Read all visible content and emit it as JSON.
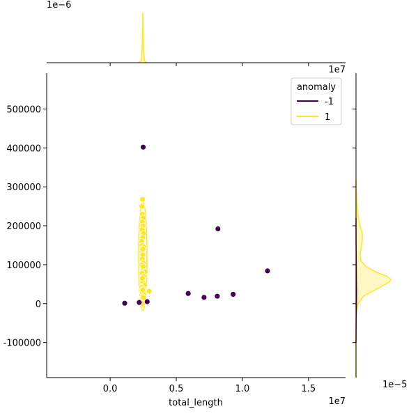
{
  "chart_data": {
    "type": "scatter",
    "title": "",
    "xlabel": "total_length",
    "ylabel": "",
    "xlim": [
      -4800000,
      17800000
    ],
    "ylim": [
      -190000,
      592000
    ],
    "x_ticks": [
      0,
      5000000,
      10000000,
      15000000
    ],
    "x_tick_labels": [
      "0.0",
      "0.5",
      "1.0",
      "1.5"
    ],
    "y_ticks": [
      -100000,
      0,
      100000,
      200000,
      300000,
      400000,
      500000
    ],
    "y_tick_labels": [
      "-100000",
      "0",
      "100000",
      "200000",
      "300000",
      "400000",
      "500000"
    ],
    "x_offset_label": "1e7",
    "top_marginal_offset_label": "1e−6",
    "right_top_offset_label": "1e7",
    "right_bottom_offset_label": "1e−5",
    "legend": {
      "title": "anomaly",
      "entries": [
        {
          "label": "-1",
          "color": "#440154"
        },
        {
          "label": "1",
          "color": "#fde725"
        }
      ]
    },
    "colors": {
      "anomaly_neg": "#440154",
      "anomaly_pos": "#fde725",
      "kde_fill": "#fef7c3"
    },
    "series": [
      {
        "name": "-1",
        "points": [
          [
            1100000,
            1000
          ],
          [
            2200000,
            3000
          ],
          [
            2500000,
            402000
          ],
          [
            2800000,
            5000
          ],
          [
            5900000,
            26000
          ],
          [
            7100000,
            16000
          ],
          [
            8100000,
            19000
          ],
          [
            8150000,
            192000
          ],
          [
            9300000,
            24000
          ],
          [
            11900000,
            84000
          ]
        ]
      },
      {
        "name": "1",
        "points": [
          [
            2450000,
            268000
          ],
          [
            2400000,
            250000
          ],
          [
            2420000,
            230000
          ],
          [
            2500000,
            220000
          ],
          [
            2430000,
            210000
          ],
          [
            2480000,
            200000
          ],
          [
            2410000,
            190000
          ],
          [
            2520000,
            180000
          ],
          [
            2460000,
            170000
          ],
          [
            2400000,
            160000
          ],
          [
            2440000,
            150000
          ],
          [
            2550000,
            145000
          ],
          [
            2420000,
            135000
          ],
          [
            2470000,
            125000
          ],
          [
            2430000,
            115000
          ],
          [
            2500000,
            105000
          ],
          [
            2410000,
            100000
          ],
          [
            2480000,
            90000
          ],
          [
            2650000,
            82000
          ],
          [
            2420000,
            78000
          ],
          [
            2530000,
            70000
          ],
          [
            2450000,
            62000
          ],
          [
            2480000,
            55000
          ],
          [
            2600000,
            48000
          ],
          [
            2400000,
            42000
          ],
          [
            2520000,
            38000
          ],
          [
            2950000,
            32000
          ],
          [
            2430000,
            28000
          ],
          [
            2560000,
            22000
          ],
          [
            2460000,
            18000
          ],
          [
            2490000,
            12000
          ],
          [
            2420000,
            8000
          ],
          [
            2580000,
            4000
          ],
          [
            2450000,
            0
          ],
          [
            2510000,
            15000
          ],
          [
            2470000,
            35000
          ],
          [
            2440000,
            65000
          ],
          [
            2500000,
            95000
          ],
          [
            2470000,
            140000
          ]
        ]
      }
    ],
    "kde_right_yellow": [
      [
        -190000,
        0
      ],
      [
        -40000,
        0
      ],
      [
        -20000,
        0.01
      ],
      [
        0,
        0.04
      ],
      [
        20000,
        0.16
      ],
      [
        40000,
        0.45
      ],
      [
        55000,
        0.66
      ],
      [
        62000,
        0.7
      ],
      [
        70000,
        0.62
      ],
      [
        80000,
        0.42
      ],
      [
        95000,
        0.2
      ],
      [
        110000,
        0.1
      ],
      [
        125000,
        0.08
      ],
      [
        140000,
        0.1
      ],
      [
        155000,
        0.12
      ],
      [
        170000,
        0.13
      ],
      [
        185000,
        0.12
      ],
      [
        200000,
        0.08
      ],
      [
        220000,
        0.05
      ],
      [
        240000,
        0.03
      ],
      [
        265000,
        0.015
      ],
      [
        290000,
        0.005
      ],
      [
        320000,
        0
      ]
    ],
    "kde_right_purple": [
      [
        -100000,
        0
      ],
      [
        -40000,
        0.003
      ],
      [
        0,
        0.009
      ],
      [
        25000,
        0.011
      ],
      [
        60000,
        0.008
      ],
      [
        100000,
        0.005
      ],
      [
        160000,
        0.002
      ],
      [
        220000,
        0
      ]
    ],
    "kde_top_yellow": [
      [
        2100000,
        0
      ],
      [
        2350000,
        0.03
      ],
      [
        2420000,
        0.3
      ],
      [
        2470000,
        1.0
      ],
      [
        2520000,
        0.3
      ],
      [
        2600000,
        0.03
      ],
      [
        2800000,
        0
      ]
    ]
  }
}
